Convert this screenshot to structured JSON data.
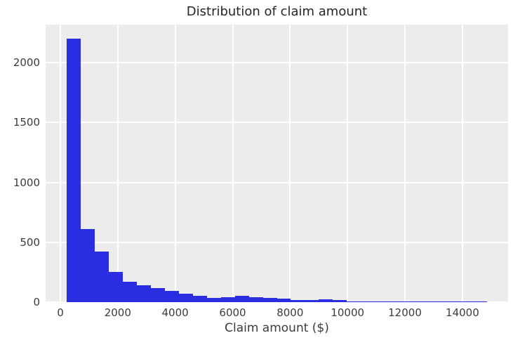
{
  "chart_data": {
    "type": "bar",
    "subtype": "histogram",
    "title": "Distribution of claim amount",
    "xlabel": "Claim amount ($)",
    "ylabel": "",
    "bin_start": 220,
    "bin_width": 488,
    "counts": [
      2200,
      610,
      425,
      255,
      170,
      140,
      115,
      92,
      69,
      52,
      38,
      43,
      55,
      43,
      34,
      28,
      20,
      18,
      26,
      19,
      8,
      6,
      6,
      5,
      5,
      5,
      6,
      5,
      5,
      2
    ],
    "x_ticks": [
      0,
      2000,
      4000,
      6000,
      8000,
      10000,
      12000,
      14000
    ],
    "y_ticks": [
      0,
      500,
      1000,
      1500,
      2000
    ],
    "xlim": [
      -512,
      15592
    ],
    "ylim": [
      0,
      2318
    ],
    "grid": true,
    "legend": "none",
    "colors": {
      "bar": "#2B2DE3",
      "plot_background": "#ECECEC",
      "gridline": "#FFFFFF",
      "tick_text": "#3b3b3b",
      "title_text": "#262626",
      "figure_background": "#FFFFFF"
    }
  }
}
